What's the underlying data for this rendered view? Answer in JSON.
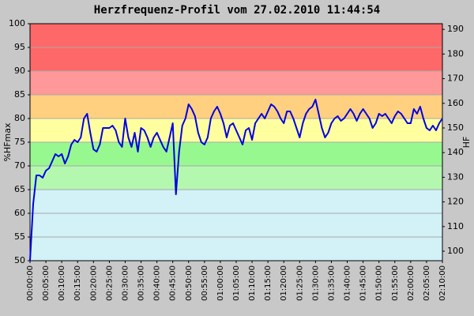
{
  "chart_data": {
    "type": "line",
    "title": "Herzfrequenz-Profil vom 27.02.2010 11:44:54",
    "ylabel": "%HFmax",
    "y2label": "HF",
    "ylim": [
      50,
      100
    ],
    "yticks": [
      50,
      55,
      60,
      65,
      70,
      75,
      80,
      85,
      90,
      95,
      100
    ],
    "y2lim": [
      96.15,
      192.3
    ],
    "y2ticks": [
      100,
      110,
      120,
      130,
      140,
      150,
      160,
      170,
      180,
      190
    ],
    "xlim": [
      0,
      130
    ],
    "xticks": [
      {
        "value": 0,
        "label": "00:00:00"
      },
      {
        "value": 5,
        "label": "00:05:00"
      },
      {
        "value": 10,
        "label": "00:10:00"
      },
      {
        "value": 15,
        "label": "00:15:00"
      },
      {
        "value": 20,
        "label": "00:20:00"
      },
      {
        "value": 25,
        "label": "00:25:00"
      },
      {
        "value": 30,
        "label": "00:30:00"
      },
      {
        "value": 35,
        "label": "00:35:00"
      },
      {
        "value": 40,
        "label": "00:40:00"
      },
      {
        "value": 45,
        "label": "00:45:00"
      },
      {
        "value": 50,
        "label": "00:50:00"
      },
      {
        "value": 55,
        "label": "00:55:00"
      },
      {
        "value": 60,
        "label": "01:00:00"
      },
      {
        "value": 65,
        "label": "01:05:00"
      },
      {
        "value": 70,
        "label": "01:10:00"
      },
      {
        "value": 75,
        "label": "01:15:00"
      },
      {
        "value": 80,
        "label": "01:20:00"
      },
      {
        "value": 85,
        "label": "01:25:00"
      },
      {
        "value": 90,
        "label": "01:30:00"
      },
      {
        "value": 95,
        "label": "01:35:00"
      },
      {
        "value": 100,
        "label": "01:40:00"
      },
      {
        "value": 105,
        "label": "01:45:00"
      },
      {
        "value": 110,
        "label": "01:50:00"
      },
      {
        "value": 115,
        "label": "01:55:00"
      },
      {
        "value": 120,
        "label": "02:00:00"
      },
      {
        "value": 125,
        "label": "02:05:00"
      },
      {
        "value": 130,
        "label": "02:10:00"
      }
    ],
    "grid": true,
    "zones": [
      {
        "from": 50,
        "to": 65,
        "color": "#d2f2f8"
      },
      {
        "from": 65,
        "to": 70,
        "color": "#b4f8b0"
      },
      {
        "from": 70,
        "to": 75,
        "color": "#98f890"
      },
      {
        "from": 75,
        "to": 80,
        "color": "#ffffa0"
      },
      {
        "from": 80,
        "to": 85,
        "color": "#ffd080"
      },
      {
        "from": 85,
        "to": 90,
        "color": "#ff9898"
      },
      {
        "from": 90,
        "to": 100,
        "color": "#ff6868"
      }
    ],
    "x": [
      0,
      1,
      2,
      3,
      4,
      5,
      6,
      7,
      8,
      9,
      10,
      11,
      12,
      13,
      14,
      15,
      16,
      17,
      18,
      19,
      20,
      21,
      22,
      23,
      24,
      25,
      26,
      27,
      28,
      29,
      30,
      31,
      32,
      33,
      34,
      35,
      36,
      37,
      38,
      39,
      40,
      41,
      42,
      43,
      44,
      45,
      46,
      47,
      48,
      49,
      50,
      51,
      52,
      53,
      54,
      55,
      56,
      57,
      58,
      59,
      60,
      61,
      62,
      63,
      64,
      65,
      66,
      67,
      68,
      69,
      70,
      71,
      72,
      73,
      74,
      75,
      76,
      77,
      78,
      79,
      80,
      81,
      82,
      83,
      84,
      85,
      86,
      87,
      88,
      89,
      90,
      91,
      92,
      93,
      94,
      95,
      96,
      97,
      98,
      99,
      100,
      101,
      102,
      103,
      104,
      105,
      106,
      107,
      108,
      109,
      110,
      111,
      112,
      113,
      114,
      115,
      116,
      117,
      118,
      119,
      120,
      121,
      122,
      123,
      124,
      125,
      126,
      127,
      128,
      129,
      130
    ],
    "series": [
      {
        "name": "%HFmax",
        "color": "#0000e0",
        "values": [
          50,
          62,
          68,
          68,
          67.5,
          69,
          69.5,
          71,
          72.5,
          72,
          72.5,
          70.5,
          72,
          74.5,
          75.5,
          75,
          76,
          80,
          81,
          77,
          73.5,
          73,
          74.5,
          78,
          78,
          78,
          78.5,
          77.5,
          75,
          74,
          80,
          76,
          74,
          77,
          73,
          78,
          77.5,
          76,
          74,
          76,
          77,
          75.5,
          74,
          73,
          76,
          79,
          64,
          73,
          78.5,
          80,
          83,
          82,
          80.5,
          77,
          75,
          74.5,
          76,
          80,
          81.5,
          82.5,
          81,
          79,
          76,
          78.5,
          79,
          77.5,
          76,
          74.5,
          77.5,
          78,
          75.5,
          79,
          80,
          81,
          80,
          81.5,
          83,
          82.5,
          81.5,
          80,
          79,
          81.5,
          81.5,
          80,
          78,
          76,
          79,
          81,
          82,
          82.5,
          84,
          81,
          78,
          76,
          77,
          79,
          80,
          80.5,
          79.5,
          80,
          81,
          82,
          81,
          79.5,
          81,
          82,
          81,
          80,
          78,
          79,
          81,
          80.5,
          81,
          80,
          79,
          80.5,
          81.5,
          81,
          80,
          79,
          79,
          82,
          81,
          82.5,
          80,
          78,
          77.5,
          78.5,
          77.5,
          79,
          80
        ]
      }
    ]
  }
}
